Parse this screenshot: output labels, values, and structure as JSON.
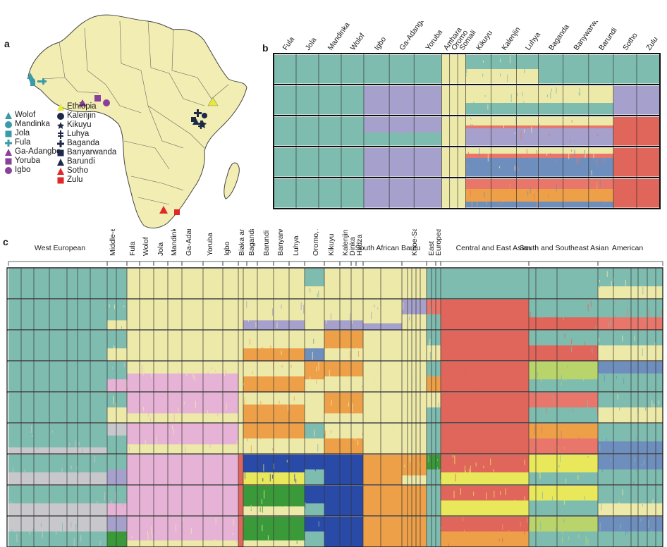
{
  "panel_labels": {
    "a": "a",
    "b": "b",
    "c": "c"
  },
  "legend": {
    "left": [
      {
        "label": "Wolof",
        "shape": "triangle",
        "color": "#3a9aa8"
      },
      {
        "label": "Mandinka",
        "shape": "circle",
        "color": "#3a9aa8"
      },
      {
        "label": "Jola",
        "shape": "square",
        "color": "#3a9aa8"
      },
      {
        "label": "Fula",
        "shape": "plus",
        "color": "#3a9aa8"
      },
      {
        "label": "Ga-Adangbe",
        "shape": "triangle",
        "color": "#8a3f9a"
      },
      {
        "label": "Yoruba",
        "shape": "square",
        "color": "#8a3f9a"
      },
      {
        "label": "Igbo",
        "shape": "circle",
        "color": "#8a3f9a"
      }
    ],
    "right": [
      {
        "label": "Ethiopia",
        "shape": "triangle",
        "color": "#e8e83a"
      },
      {
        "label": "Kalenjin",
        "shape": "circle",
        "color": "#1c2a48"
      },
      {
        "label": "Kikuyu",
        "shape": "star",
        "color": "#1c2a48"
      },
      {
        "label": "Luhya",
        "shape": "dplus",
        "color": "#1c2a48"
      },
      {
        "label": "Baganda",
        "shape": "plus",
        "color": "#1c2a48"
      },
      {
        "label": "Banyarwanda",
        "shape": "square",
        "color": "#1c2a48"
      },
      {
        "label": "Barundi",
        "shape": "triangle",
        "color": "#1c2a48"
      },
      {
        "label": "Sotho",
        "shape": "triangle",
        "color": "#e02828"
      },
      {
        "label": "Zulu",
        "shape": "square",
        "color": "#e02828"
      }
    ]
  },
  "panel_b": {
    "labels": [
      "Fula",
      "Jola",
      "Mandinka",
      "Wolof",
      "Igbo",
      "Ga-Adangbe",
      "Yoruba",
      "Amhara",
      "Oromo",
      "Somali",
      "Kikuyu",
      "Kalenjin",
      "Luhya",
      "Baganda",
      "Banywarwanda",
      "Barundi",
      "Sotho",
      "Zulu"
    ],
    "rows": 5
  },
  "panel_c": {
    "labels": [
      "West European",
      "Middle-eastern",
      "Fula",
      "Wolof",
      "Jola",
      "Mandinka",
      "Ga-Adangbe",
      "Yoruba",
      "Igbo",
      "Biaka and Mbuti rainforest HG",
      "Baganda",
      "Barundi",
      "Banyarwanda",
      "Luhya",
      "Oromo, Amhara and Somali",
      "Kikuyu",
      "Kalenjin",
      "Dinka",
      "Hadza",
      "South African Bantu",
      "Khoe-San",
      "East",
      "European",
      "Central and East Asian",
      "South and Southeast Asian",
      "American"
    ],
    "rows": 9
  },
  "colors": {
    "teal": "#7fbcb0",
    "cream": "#ede9a8",
    "lavender": "#a6a0cc",
    "salmon": "#e8766a",
    "red": "#e0655a",
    "pink": "#e6b3d6",
    "orange": "#eea048",
    "blue": "#6e8fbe",
    "green": "#3a9a3a",
    "darkblue": "#2a4aa8",
    "grey": "#c8c8cc",
    "yellow": "#e8e85a",
    "lime": "#b8d46a",
    "map_land": "#f2edb2"
  }
}
